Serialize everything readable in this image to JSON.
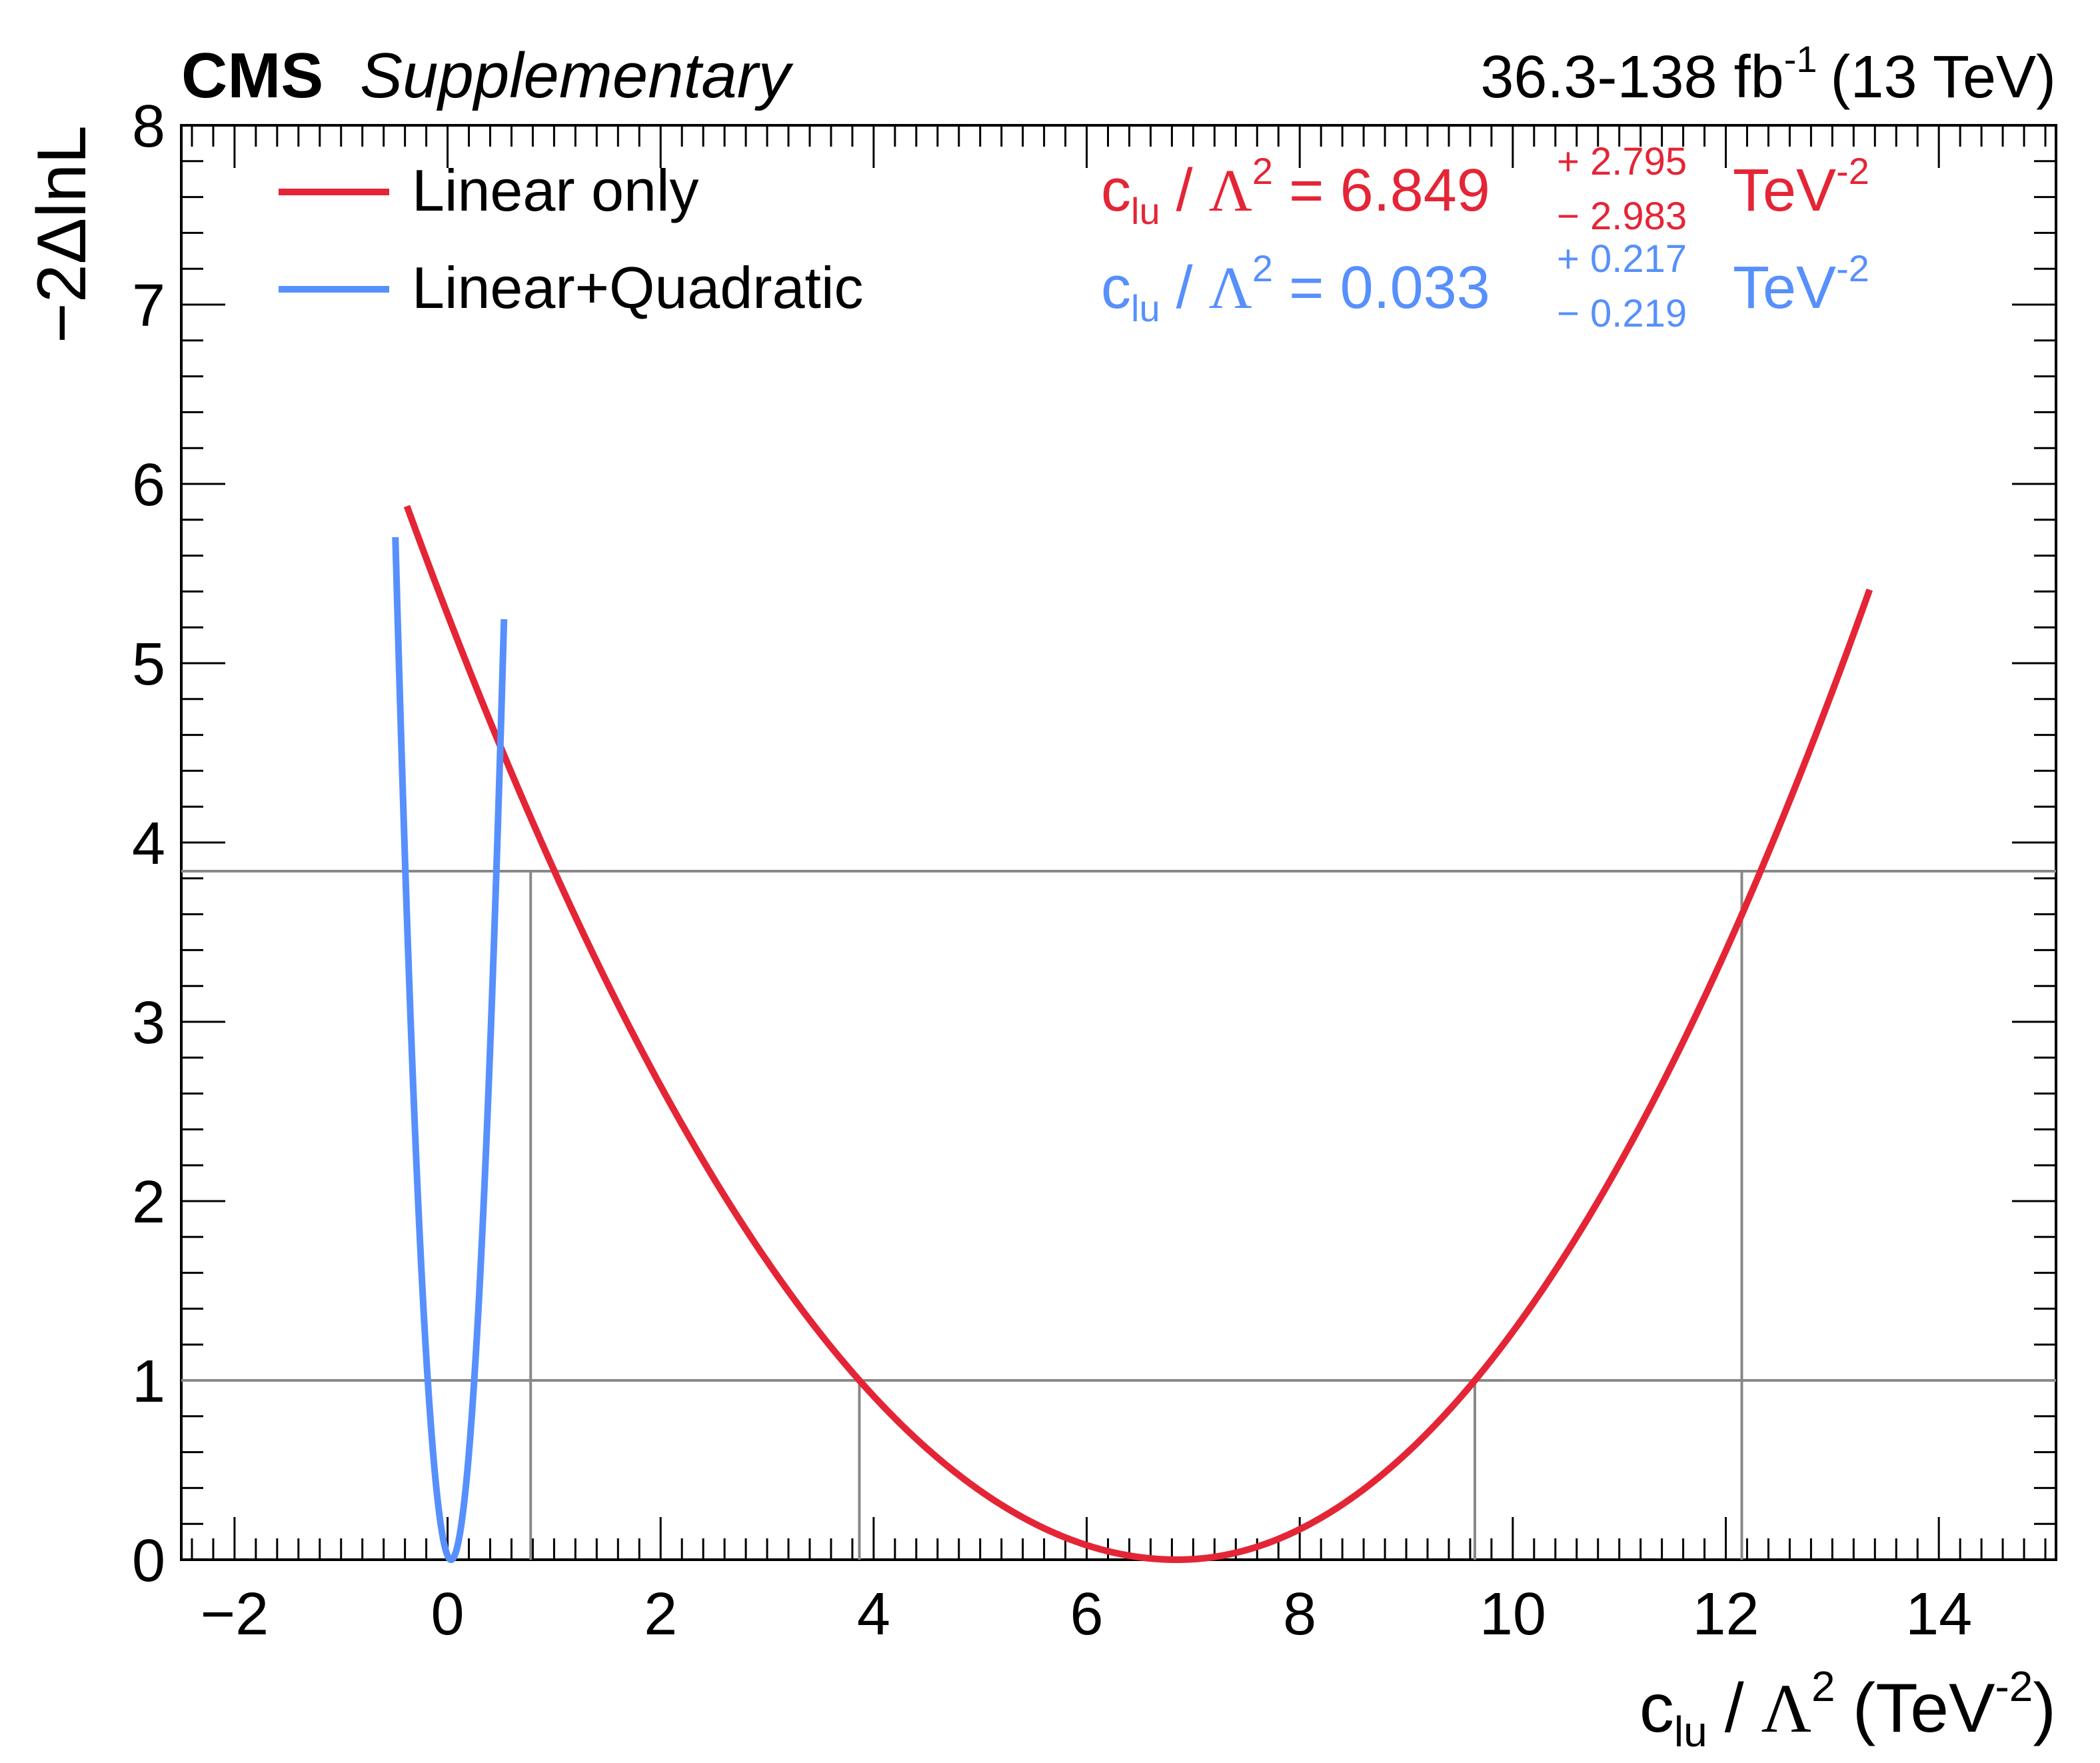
{
  "header": {
    "experiment": "CMS",
    "label": "Supplementary",
    "lumi_text": "36.3-138 fb",
    "lumi_sup": "-1",
    "energy": "(13 TeV)"
  },
  "legend": {
    "entries": [
      {
        "label": "Linear only",
        "color": "#e42536"
      },
      {
        "label": "Linear+Quadratic",
        "color": "#5790fc"
      }
    ]
  },
  "results": [
    {
      "param": "c",
      "sub": "lu",
      "slash": "/",
      "lambda": "Λ",
      "sq": "2",
      "eq": "=",
      "value": "6.849",
      "up": "+ 2.795",
      "down": "− 2.983",
      "unit": "TeV",
      "unit_sup": "-2",
      "color": "#e42536"
    },
    {
      "param": "c",
      "sub": "lu",
      "slash": "/",
      "lambda": "Λ",
      "sq": "2",
      "eq": "=",
      "value": "0.033",
      "up": "+ 0.217",
      "down": "− 0.219",
      "unit": "TeV",
      "unit_sup": "-2",
      "color": "#5790fc"
    }
  ],
  "axes": {
    "x_title": {
      "c": "c",
      "sub": "lu",
      "rest": "/",
      "lambda": "Λ",
      "sq": "2",
      "unit_open": "(TeV",
      "unit_sup": "-2",
      "unit_close": ")"
    },
    "y_title": "−2ΔlnL"
  },
  "chart_data": {
    "type": "line",
    "xlim": [
      -2.5,
      15.1
    ],
    "ylim": [
      0,
      8
    ],
    "x_ticks": [
      -2,
      0,
      2,
      4,
      6,
      8,
      10,
      12,
      14
    ],
    "x_tick_labels": [
      "−2",
      "0",
      "2",
      "4",
      "6",
      "8",
      "10",
      "12",
      "14"
    ],
    "y_ticks": [
      0,
      1,
      2,
      3,
      4,
      5,
      6,
      7,
      8
    ],
    "y_tick_labels": [
      "0",
      "1",
      "2",
      "3",
      "4",
      "5",
      "6",
      "7",
      "8"
    ],
    "grid": false,
    "legend_position": "top-left",
    "series": [
      {
        "name": "Linear only",
        "color": "#e42536",
        "best_fit": 6.849,
        "err_up": 2.795,
        "err_down": 2.983,
        "x_range": [
          -0.88,
          13.35
        ],
        "y_max": 5.9
      },
      {
        "name": "Linear+Quadratic",
        "color": "#5790fc",
        "best_fit": 0.033,
        "err_up": 0.217,
        "err_down": 0.219,
        "x_range": [
          -0.49,
          0.53
        ],
        "y_max": 5.9
      }
    ],
    "reference_lines": {
      "horizontal": [
        1.0,
        3.84
      ],
      "vertical": [
        {
          "x": 0.78,
          "y": 3.84
        },
        {
          "x": 3.866,
          "y": 1.0
        },
        {
          "x": 9.644,
          "y": 1.0
        },
        {
          "x": 12.15,
          "y": 3.84
        }
      ],
      "color": "#888888"
    }
  }
}
